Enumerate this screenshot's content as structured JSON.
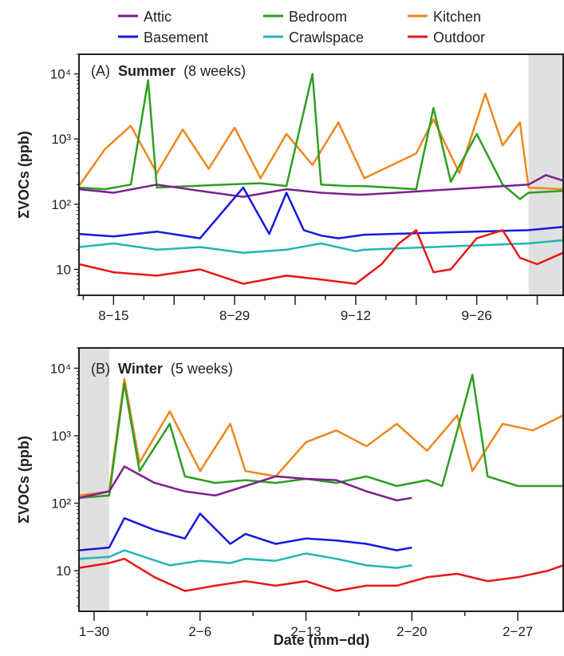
{
  "figure": {
    "x_axis_title": "Date (mm−dd)"
  },
  "legend": [
    {
      "name": "Attic",
      "color": "#7b1f8f"
    },
    {
      "name": "Bedroom",
      "color": "#2e9e1f"
    },
    {
      "name": "Kitchen",
      "color": "#f0861e"
    },
    {
      "name": "Basement",
      "color": "#1717e0"
    },
    {
      "name": "Crawlspace",
      "color": "#22b5b8"
    },
    {
      "name": "Outdoor",
      "color": "#e81717"
    }
  ],
  "chart_data": [
    {
      "type": "line",
      "panel": "A",
      "title_prefix": "(A)",
      "title_bold": "Summer",
      "title_suffix": "(8 weeks)",
      "ylabel": "ΣVOCs (ppb)",
      "yscale": "log",
      "ylim": [
        4,
        20000
      ],
      "yticks": [
        10,
        100,
        1000,
        10000
      ],
      "ytick_labels": [
        "10",
        "10²",
        "10³",
        "10⁴"
      ],
      "xlim": [
        "2019-08-11",
        "2019-10-06"
      ],
      "xticks": [
        "2019-08-15",
        "2019-08-29",
        "2019-09-12",
        "2019-09-26"
      ],
      "xtick_labels": [
        "8−15",
        "8−29",
        "9−12",
        "9−26"
      ],
      "shaded_range": [
        "2019-10-02",
        "2019-10-06"
      ],
      "series": [
        {
          "name": "Kitchen",
          "color": "#f0861e",
          "points": [
            [
              "2019-08-11",
              190
            ],
            [
              "2019-08-14",
              700
            ],
            [
              "2019-08-17",
              1600
            ],
            [
              "2019-08-20",
              300
            ],
            [
              "2019-08-23",
              1400
            ],
            [
              "2019-08-26",
              350
            ],
            [
              "2019-08-29",
              1500
            ],
            [
              "2019-09-01",
              250
            ],
            [
              "2019-09-04",
              1200
            ],
            [
              "2019-09-07",
              400
            ],
            [
              "2019-09-10",
              1800
            ],
            [
              "2019-09-13",
              250
            ],
            [
              "2019-09-19",
              600
            ],
            [
              "2019-09-21",
              2000
            ],
            [
              "2019-09-24",
              300
            ],
            [
              "2019-09-27",
              5000
            ],
            [
              "2019-09-29",
              800
            ],
            [
              "2019-10-01",
              1800
            ],
            [
              "2019-10-02",
              180
            ],
            [
              "2019-10-06",
              170
            ]
          ]
        },
        {
          "name": "Bedroom",
          "color": "#2e9e1f",
          "points": [
            [
              "2019-08-11",
              180
            ],
            [
              "2019-08-14",
              170
            ],
            [
              "2019-08-17",
              200
            ],
            [
              "2019-08-19",
              8000
            ],
            [
              "2019-08-20",
              180
            ],
            [
              "2019-08-24",
              190
            ],
            [
              "2019-08-28",
              200
            ],
            [
              "2019-09-01",
              210
            ],
            [
              "2019-09-04",
              190
            ],
            [
              "2019-09-07",
              10000
            ],
            [
              "2019-09-08",
              200
            ],
            [
              "2019-09-11",
              190
            ],
            [
              "2019-09-13",
              190
            ],
            [
              "2019-09-19",
              170
            ],
            [
              "2019-09-21",
              3000
            ],
            [
              "2019-09-23",
              220
            ],
            [
              "2019-09-26",
              1200
            ],
            [
              "2019-09-29",
              200
            ],
            [
              "2019-10-01",
              120
            ],
            [
              "2019-10-02",
              150
            ],
            [
              "2019-10-06",
              160
            ]
          ]
        },
        {
          "name": "Attic",
          "color": "#7b1f8f",
          "points": [
            [
              "2019-08-11",
              170
            ],
            [
              "2019-08-15",
              150
            ],
            [
              "2019-08-20",
              200
            ],
            [
              "2019-08-25",
              160
            ],
            [
              "2019-08-30",
              130
            ],
            [
              "2019-09-04",
              170
            ],
            [
              "2019-09-08",
              150
            ],
            [
              "2019-09-12",
              140
            ],
            [
              "2019-09-13",
              140
            ],
            [
              "2019-10-02",
              200
            ],
            [
              "2019-10-04",
              280
            ],
            [
              "2019-10-06",
              230
            ]
          ]
        },
        {
          "name": "Basement",
          "color": "#1717e0",
          "points": [
            [
              "2019-08-11",
              35
            ],
            [
              "2019-08-15",
              32
            ],
            [
              "2019-08-20",
              38
            ],
            [
              "2019-08-25",
              30
            ],
            [
              "2019-08-30",
              180
            ],
            [
              "2019-09-02",
              35
            ],
            [
              "2019-09-04",
              150
            ],
            [
              "2019-09-06",
              40
            ],
            [
              "2019-09-08",
              33
            ],
            [
              "2019-09-10",
              30
            ],
            [
              "2019-09-13",
              34
            ],
            [
              "2019-10-02",
              40
            ],
            [
              "2019-10-06",
              45
            ]
          ]
        },
        {
          "name": "Crawlspace",
          "color": "#22b5b8",
          "points": [
            [
              "2019-08-11",
              22
            ],
            [
              "2019-08-15",
              25
            ],
            [
              "2019-08-20",
              20
            ],
            [
              "2019-08-25",
              22
            ],
            [
              "2019-08-30",
              18
            ],
            [
              "2019-09-04",
              20
            ],
            [
              "2019-09-08",
              25
            ],
            [
              "2019-09-12",
              19
            ],
            [
              "2019-09-13",
              20
            ],
            [
              "2019-10-02",
              25
            ],
            [
              "2019-10-06",
              28
            ]
          ]
        },
        {
          "name": "Outdoor",
          "color": "#e81717",
          "points": [
            [
              "2019-08-11",
              12
            ],
            [
              "2019-08-15",
              9
            ],
            [
              "2019-08-20",
              8
            ],
            [
              "2019-08-25",
              10
            ],
            [
              "2019-08-30",
              6
            ],
            [
              "2019-09-04",
              8
            ],
            [
              "2019-09-08",
              7
            ],
            [
              "2019-09-12",
              6
            ],
            [
              "2019-09-15",
              12
            ],
            [
              "2019-09-17",
              25
            ],
            [
              "2019-09-19",
              40
            ],
            [
              "2019-09-21",
              9
            ],
            [
              "2019-09-23",
              10
            ],
            [
              "2019-09-26",
              30
            ],
            [
              "2019-09-29",
              40
            ],
            [
              "2019-10-01",
              15
            ],
            [
              "2019-10-03",
              12
            ],
            [
              "2019-10-06",
              18
            ]
          ]
        }
      ]
    },
    {
      "type": "line",
      "panel": "B",
      "title_prefix": "(B)",
      "title_bold": "Winter",
      "title_suffix": "(5 weeks)",
      "ylabel": "ΣVOCs (ppb)",
      "yscale": "log",
      "ylim": [
        2.5,
        20000
      ],
      "yticks": [
        10,
        100,
        1000,
        10000
      ],
      "ytick_labels": [
        "10",
        "10²",
        "10³",
        "10⁴"
      ],
      "xlim": [
        "2020-01-29",
        "2020-03-01"
      ],
      "xticks": [
        "2020-01-30",
        "2020-02-06",
        "2020-02-13",
        "2020-02-20",
        "2020-02-27"
      ],
      "xtick_labels": [
        "1−30",
        "2−6",
        "2−13",
        "2−20",
        "2−27"
      ],
      "shaded_range": [
        "2020-01-29",
        "2020-01-31"
      ],
      "series": [
        {
          "name": "Kitchen",
          "color": "#f0861e",
          "points": [
            [
              "2020-01-29",
              130
            ],
            [
              "2020-01-31",
              150
            ],
            [
              "2020-02-01",
              7000
            ],
            [
              "2020-02-02",
              400
            ],
            [
              "2020-02-04",
              2300
            ],
            [
              "2020-02-06",
              300
            ],
            [
              "2020-02-08",
              1500
            ],
            [
              "2020-02-09",
              300
            ],
            [
              "2020-02-11",
              250
            ],
            [
              "2020-02-13",
              800
            ],
            [
              "2020-02-15",
              1200
            ],
            [
              "2020-02-17",
              700
            ],
            [
              "2020-02-19",
              1500
            ],
            [
              "2020-02-21",
              600
            ],
            [
              "2020-02-23",
              2000
            ],
            [
              "2020-02-24",
              300
            ],
            [
              "2020-02-26",
              1500
            ],
            [
              "2020-02-28",
              1200
            ],
            [
              "2020-03-01",
              2000
            ]
          ]
        },
        {
          "name": "Bedroom",
          "color": "#2e9e1f",
          "points": [
            [
              "2020-01-29",
              120
            ],
            [
              "2020-01-31",
              130
            ],
            [
              "2020-02-01",
              6000
            ],
            [
              "2020-02-02",
              300
            ],
            [
              "2020-02-04",
              1500
            ],
            [
              "2020-02-05",
              250
            ],
            [
              "2020-02-07",
              200
            ],
            [
              "2020-02-09",
              220
            ],
            [
              "2020-02-11",
              200
            ],
            [
              "2020-02-13",
              230
            ],
            [
              "2020-02-15",
              200
            ],
            [
              "2020-02-17",
              250
            ],
            [
              "2020-02-19",
              180
            ],
            [
              "2020-02-21",
              220
            ],
            [
              "2020-02-22",
              180
            ],
            [
              "2020-02-24",
              8000
            ],
            [
              "2020-02-25",
              250
            ],
            [
              "2020-02-27",
              180
            ],
            [
              "2020-03-01",
              180
            ]
          ]
        },
        {
          "name": "Attic",
          "color": "#7b1f8f",
          "points": [
            [
              "2020-01-29",
              120
            ],
            [
              "2020-01-31",
              150
            ],
            [
              "2020-02-01",
              350
            ],
            [
              "2020-02-03",
              200
            ],
            [
              "2020-02-05",
              150
            ],
            [
              "2020-02-07",
              130
            ],
            [
              "2020-02-09",
              180
            ],
            [
              "2020-02-11",
              250
            ],
            [
              "2020-02-13",
              230
            ],
            [
              "2020-02-15",
              220
            ],
            [
              "2020-02-17",
              150
            ],
            [
              "2020-02-19",
              110
            ],
            [
              "2020-02-20",
              120
            ]
          ]
        },
        {
          "name": "Basement",
          "color": "#1717e0",
          "points": [
            [
              "2020-01-29",
              20
            ],
            [
              "2020-01-31",
              22
            ],
            [
              "2020-02-01",
              60
            ],
            [
              "2020-02-03",
              40
            ],
            [
              "2020-02-05",
              30
            ],
            [
              "2020-02-06",
              70
            ],
            [
              "2020-02-08",
              25
            ],
            [
              "2020-02-09",
              35
            ],
            [
              "2020-02-11",
              25
            ],
            [
              "2020-02-13",
              30
            ],
            [
              "2020-02-15",
              28
            ],
            [
              "2020-02-17",
              25
            ],
            [
              "2020-02-19",
              20
            ],
            [
              "2020-02-20",
              22
            ]
          ]
        },
        {
          "name": "Crawlspace",
          "color": "#22b5b8",
          "points": [
            [
              "2020-01-29",
              15
            ],
            [
              "2020-01-31",
              16
            ],
            [
              "2020-02-01",
              20
            ],
            [
              "2020-02-04",
              12
            ],
            [
              "2020-02-06",
              14
            ],
            [
              "2020-02-08",
              13
            ],
            [
              "2020-02-09",
              15
            ],
            [
              "2020-02-11",
              14
            ],
            [
              "2020-02-13",
              18
            ],
            [
              "2020-02-15",
              15
            ],
            [
              "2020-02-17",
              12
            ],
            [
              "2020-02-19",
              11
            ],
            [
              "2020-02-20",
              12
            ]
          ]
        },
        {
          "name": "Outdoor",
          "color": "#e81717",
          "points": [
            [
              "2020-01-29",
              11
            ],
            [
              "2020-01-31",
              13
            ],
            [
              "2020-02-01",
              15
            ],
            [
              "2020-02-03",
              8
            ],
            [
              "2020-02-05",
              5
            ],
            [
              "2020-02-07",
              6
            ],
            [
              "2020-02-09",
              7
            ],
            [
              "2020-02-11",
              6
            ],
            [
              "2020-02-13",
              7
            ],
            [
              "2020-02-15",
              5
            ],
            [
              "2020-02-17",
              6
            ],
            [
              "2020-02-19",
              6
            ],
            [
              "2020-02-21",
              8
            ],
            [
              "2020-02-23",
              9
            ],
            [
              "2020-02-25",
              7
            ],
            [
              "2020-02-27",
              8
            ],
            [
              "2020-02-29",
              10
            ],
            [
              "2020-03-01",
              12
            ]
          ]
        }
      ]
    }
  ]
}
